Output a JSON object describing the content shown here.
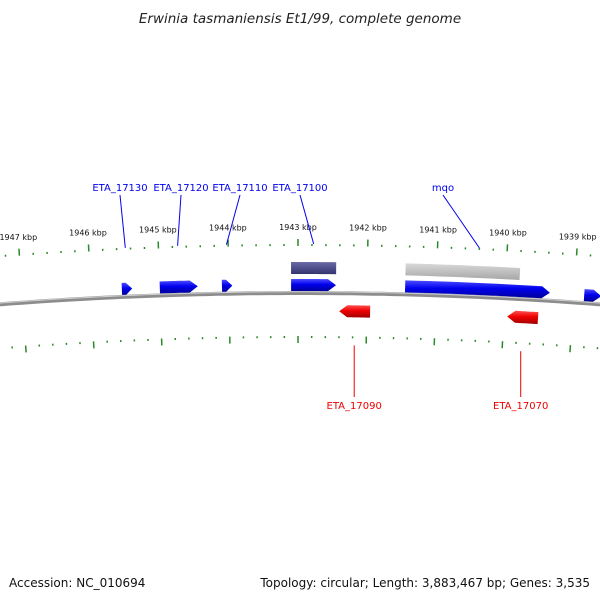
{
  "title": "Erwinia tasmaniensis Et1/99, complete genome",
  "accession": "Accession: NC_010694",
  "topology_summary": "Topology: circular; Length: 3,883,467 bp; Genes: 3,535",
  "colors": {
    "forward_gene": "#0000ee",
    "reverse_gene": "#ee0000",
    "feature_dark": "#4a4a8c",
    "feature_grey": "#bdbdbd",
    "tick": "#2a8a2a",
    "backbone": "#888888"
  },
  "axis": {
    "unit": "kbp",
    "tick_labels": [
      {
        "kbp": 1947,
        "text": "1947 kbp"
      },
      {
        "kbp": 1946,
        "text": "1946 kbp"
      },
      {
        "kbp": 1945,
        "text": "1945 kbp"
      },
      {
        "kbp": 1944,
        "text": "1944 kbp"
      },
      {
        "kbp": 1943,
        "text": "1943 kbp"
      },
      {
        "kbp": 1942,
        "text": "1942 kbp"
      },
      {
        "kbp": 1941,
        "text": "1941 kbp"
      },
      {
        "kbp": 1940,
        "text": "1940 kbp"
      },
      {
        "kbp": 1939,
        "text": "1939 kbp"
      }
    ]
  },
  "genes": [
    {
      "id": "ETA_17130",
      "label": "ETA_17130",
      "strand": "+",
      "start_kbp": 1945.55,
      "end_kbp": 1945.4
    },
    {
      "id": "ETA_17120",
      "label": "ETA_17120",
      "strand": "+",
      "start_kbp": 1945.0,
      "end_kbp": 1944.45
    },
    {
      "id": "ETA_17110",
      "label": "ETA_17110",
      "strand": "+",
      "start_kbp": 1944.1,
      "end_kbp": 1943.95
    },
    {
      "id": "ETA_17100",
      "label": "ETA_17100",
      "strand": "+",
      "start_kbp": 1943.1,
      "end_kbp": 1942.45
    },
    {
      "id": "mqo",
      "label": "mqo",
      "strand": "+",
      "start_kbp": 1941.45,
      "end_kbp": 1939.35
    },
    {
      "id": "ETA_17090",
      "label": "ETA_17090",
      "strand": "-",
      "start_kbp": 1942.4,
      "end_kbp": 1941.95
    },
    {
      "id": "ETA_17070",
      "label": "ETA_17070",
      "strand": "-",
      "start_kbp": 1939.95,
      "end_kbp": 1939.5
    },
    {
      "id": "edge-gene",
      "label": "",
      "strand": "+",
      "start_kbp": 1938.85,
      "end_kbp": 1938.6
    }
  ],
  "features": [
    {
      "id": "feature-dark",
      "style": "dark",
      "start_kbp": 1943.1,
      "end_kbp": 1942.45
    },
    {
      "id": "feature-grey",
      "style": "grey",
      "start_kbp": 1941.45,
      "end_kbp": 1939.8
    }
  ]
}
